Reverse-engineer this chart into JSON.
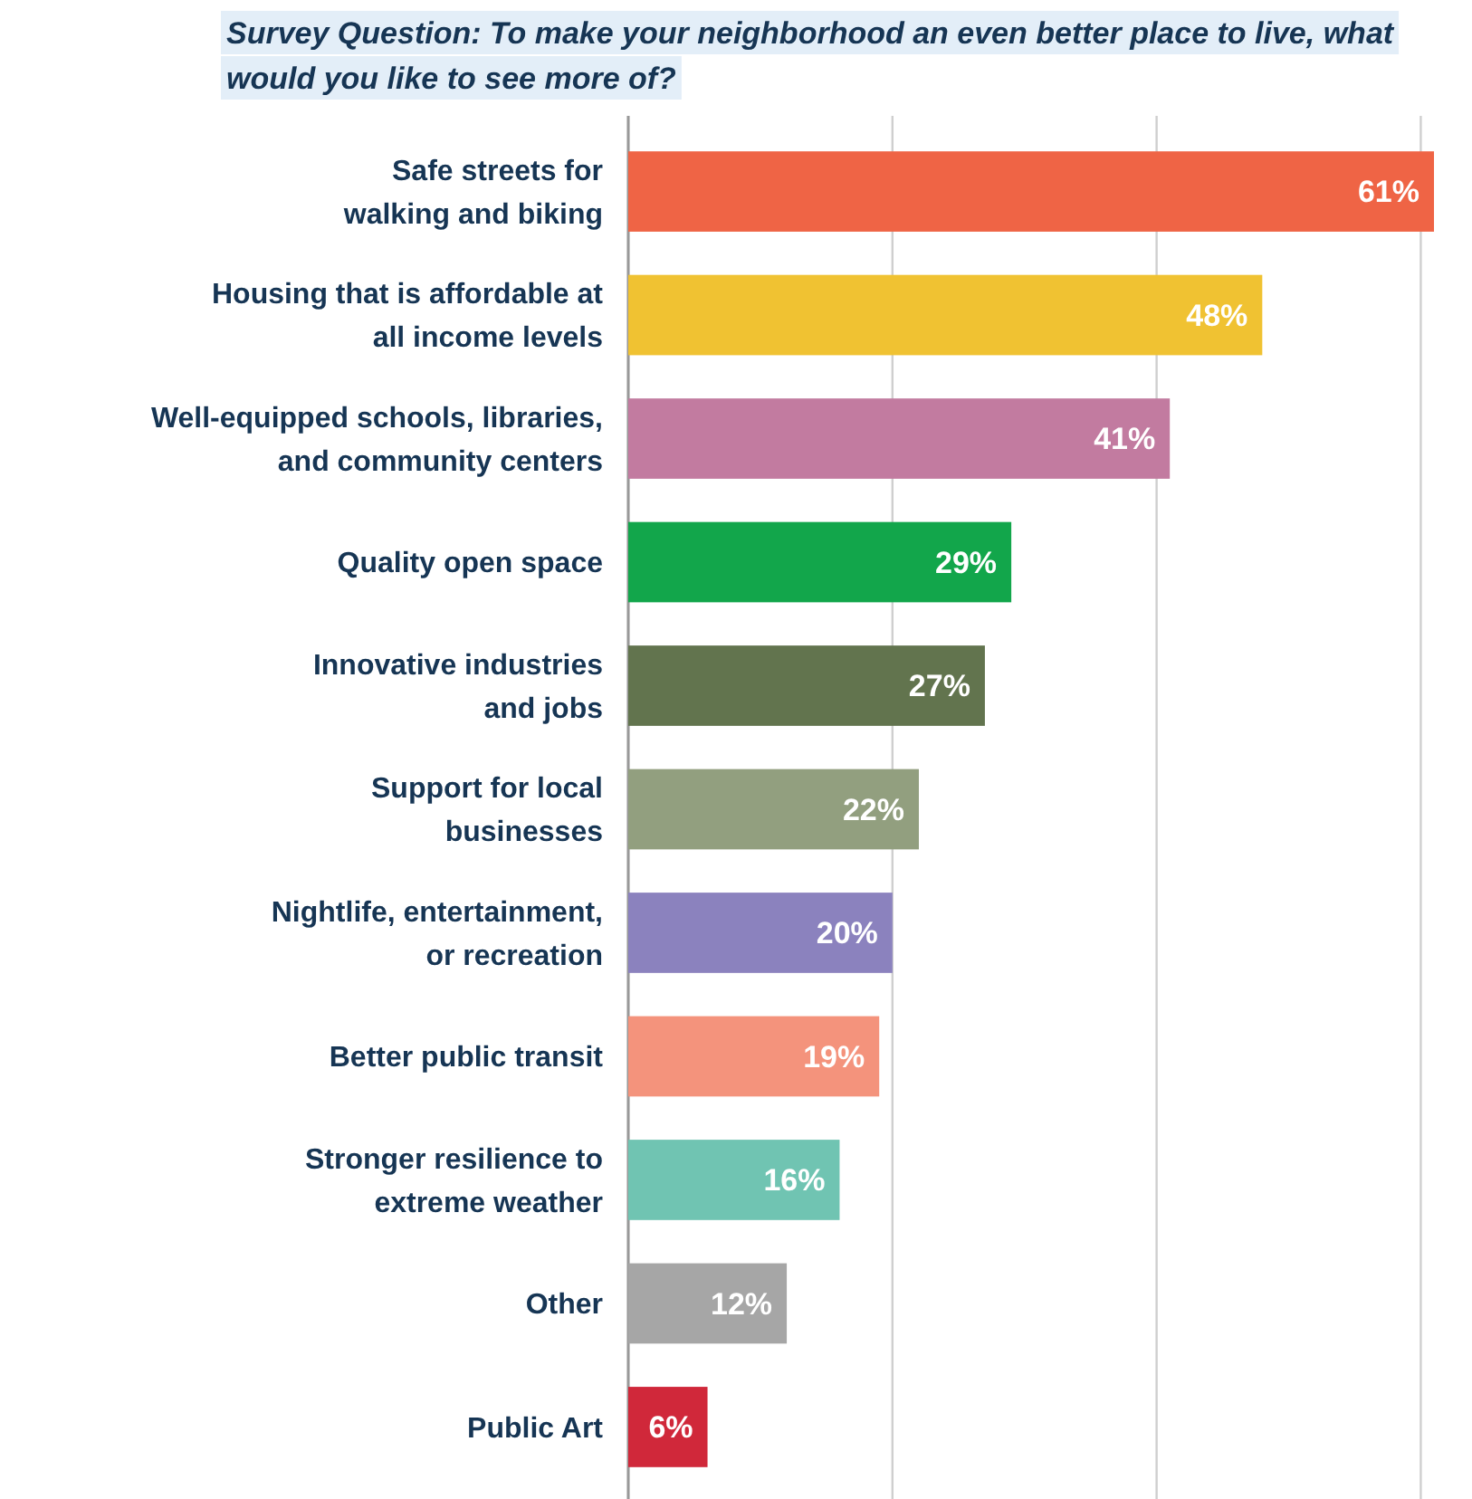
{
  "chart_data": {
    "type": "bar",
    "orientation": "horizontal",
    "title": "Survey Question: To make your neighborhood an even better place to live, what would you like to see more of?",
    "categories": [
      "Safe streets for\nwalking and biking",
      "Housing that is affordable at\nall income levels",
      "Well-equipped schools, libraries,\nand community centers",
      "Quality open space",
      "Innovative industries\nand jobs",
      "Support for local\nbusinesses",
      "Nightlife, entertainment,\nor recreation",
      "Better public transit",
      "Stronger resilience to\nextreme weather",
      "Other",
      "Public Art"
    ],
    "values": [
      61,
      48,
      41,
      29,
      27,
      22,
      20,
      19,
      16,
      12,
      6
    ],
    "value_labels": [
      "61%",
      "48%",
      "41%",
      "29%",
      "27%",
      "22%",
      "20%",
      "19%",
      "16%",
      "12%",
      "6%"
    ],
    "colors": [
      "#ef6445",
      "#f0c232",
      "#c27ba0",
      "#12a64b",
      "#62744e",
      "#929f7f",
      "#8b82be",
      "#f4937c",
      "#70c4b2",
      "#a6a6a6",
      "#d0283a"
    ],
    "xticks": [
      {
        "value": 0,
        "label": null
      },
      {
        "value": 20,
        "label": null
      },
      {
        "value": 40,
        "label": null
      },
      {
        "value": 60,
        "label": null
      }
    ],
    "grid": "x"
  }
}
